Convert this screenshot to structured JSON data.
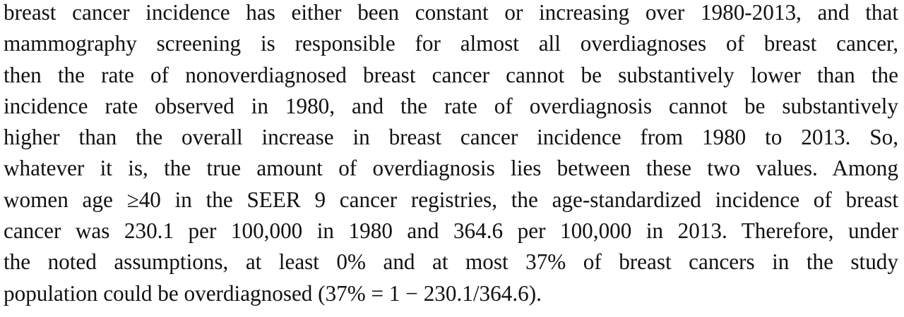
{
  "paragraph": {
    "lines": [
      "breast cancer incidence has either been constant or increasing over 1980-2013, and that",
      "mammography screening is responsible for almost all overdiagnoses of breast cancer,",
      "then the rate of nonoverdiagnosed breast cancer cannot be substantively lower than the",
      "incidence rate observed in 1980, and the rate of overdiagnosis cannot be substantively",
      "higher than the overall increase in breast cancer incidence from 1980 to 2013. So,",
      "whatever it is, the true amount of overdiagnosis lies between these two values. Among",
      "women age ≥40 in the SEER 9 cancer registries, the age-standardized incidence of breast",
      "cancer was 230.1 per 100,000 in 1980 and 364.6 per 100,000 in 2013. Therefore, under",
      "the noted assumptions, at least 0% and at most 37% of breast cancers in the study",
      "population could be overdiagnosed (37% = 1 − 230.1/364.6)."
    ]
  }
}
